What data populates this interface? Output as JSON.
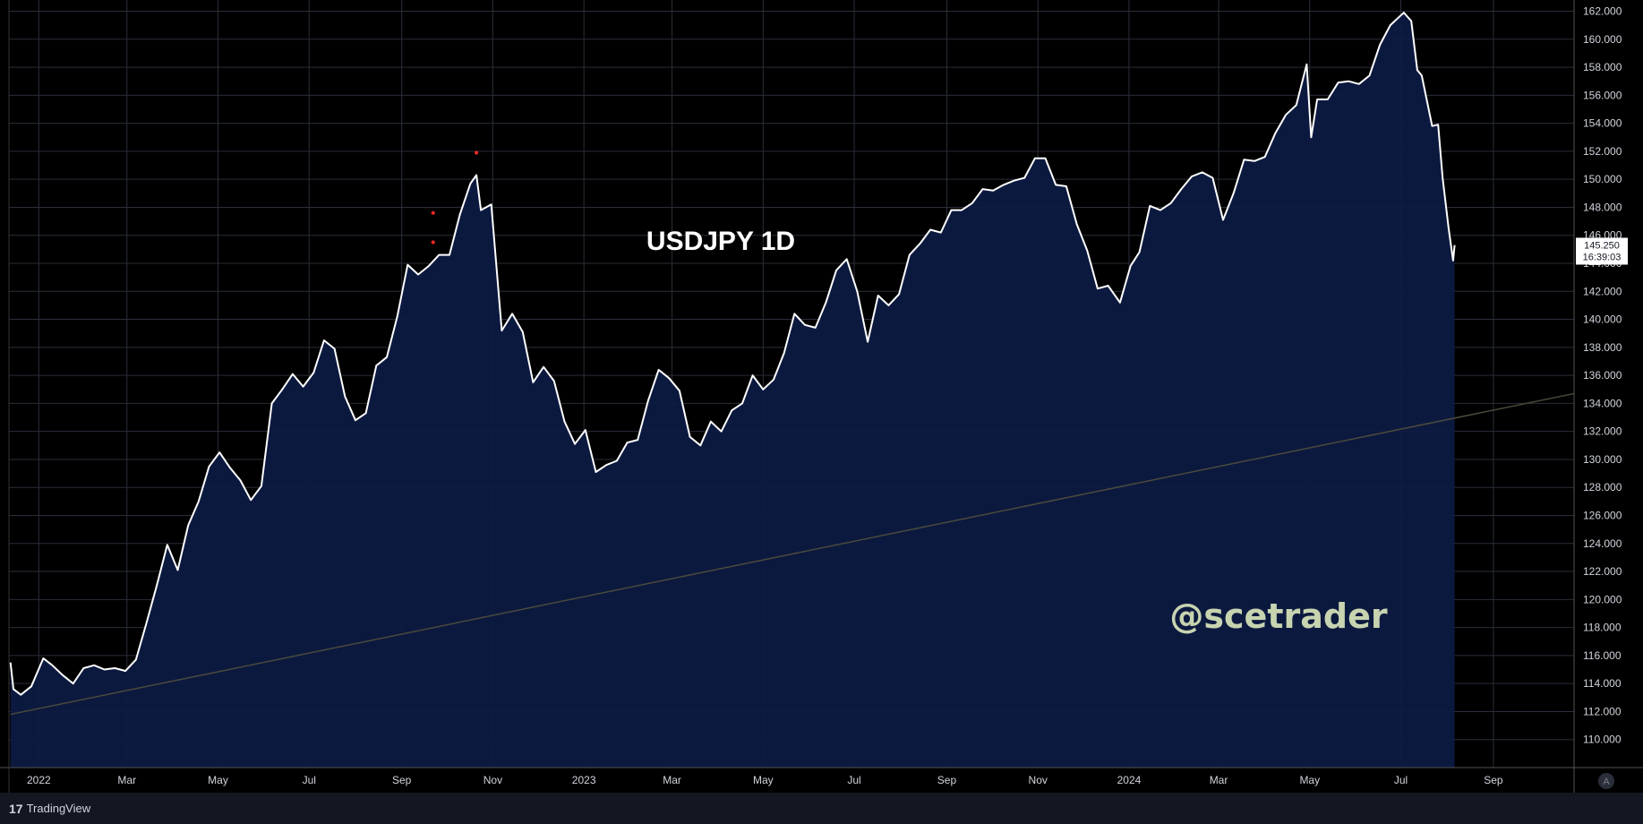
{
  "chart_data": {
    "type": "area",
    "title": "USDJPY 1D",
    "watermark": "@scetrader",
    "ylim": [
      108,
      162.8
    ],
    "y_ticks": [
      "110.000",
      "112.000",
      "114.000",
      "116.000",
      "118.000",
      "120.000",
      "122.000",
      "124.000",
      "126.000",
      "128.000",
      "130.000",
      "132.000",
      "134.000",
      "136.000",
      "138.000",
      "140.000",
      "142.000",
      "144.000",
      "146.000",
      "148.000",
      "150.000",
      "152.000",
      "154.000",
      "156.000",
      "158.000",
      "160.000",
      "162.000"
    ],
    "x_ticks": [
      {
        "label": "2022",
        "date": "2022-01-01"
      },
      {
        "label": "Mar",
        "date": "2022-03-01"
      },
      {
        "label": "May",
        "date": "2022-05-01"
      },
      {
        "label": "Jul",
        "date": "2022-07-01"
      },
      {
        "label": "Sep",
        "date": "2022-09-01"
      },
      {
        "label": "Nov",
        "date": "2022-11-01"
      },
      {
        "label": "2023",
        "date": "2023-01-01"
      },
      {
        "label": "Mar",
        "date": "2023-03-01"
      },
      {
        "label": "May",
        "date": "2023-05-01"
      },
      {
        "label": "Jul",
        "date": "2023-07-01"
      },
      {
        "label": "Sep",
        "date": "2023-09-01"
      },
      {
        "label": "Nov",
        "date": "2023-11-01"
      },
      {
        "label": "2024",
        "date": "2024-01-01"
      },
      {
        "label": "Mar",
        "date": "2024-03-01"
      },
      {
        "label": "May",
        "date": "2024-05-01"
      },
      {
        "label": "Jul",
        "date": "2024-07-01"
      },
      {
        "label": "Sep",
        "date": "2024-09-01"
      }
    ],
    "x_range": [
      "2021-12-12",
      "2024-10-25"
    ],
    "series": [
      {
        "color": "#ffffff",
        "fill": "#0d1a42",
        "points": [
          [
            "2021-12-13",
            115.5
          ],
          [
            "2021-12-15",
            113.6
          ],
          [
            "2021-12-20",
            113.2
          ],
          [
            "2021-12-27",
            113.8
          ],
          [
            "2022-01-04",
            115.8
          ],
          [
            "2022-01-10",
            115.3
          ],
          [
            "2022-01-17",
            114.6
          ],
          [
            "2022-01-24",
            114.0
          ],
          [
            "2022-01-31",
            115.1
          ],
          [
            "2022-02-07",
            115.3
          ],
          [
            "2022-02-14",
            115.0
          ],
          [
            "2022-02-21",
            115.1
          ],
          [
            "2022-02-28",
            114.9
          ],
          [
            "2022-03-07",
            115.7
          ],
          [
            "2022-03-14",
            118.3
          ],
          [
            "2022-03-21",
            121.0
          ],
          [
            "2022-03-28",
            123.9
          ],
          [
            "2022-04-04",
            122.1
          ],
          [
            "2022-04-11",
            125.3
          ],
          [
            "2022-04-18",
            127.0
          ],
          [
            "2022-04-25",
            129.5
          ],
          [
            "2022-05-02",
            130.5
          ],
          [
            "2022-05-09",
            129.4
          ],
          [
            "2022-05-16",
            128.5
          ],
          [
            "2022-05-23",
            127.1
          ],
          [
            "2022-05-30",
            128.1
          ],
          [
            "2022-06-06",
            134.0
          ],
          [
            "2022-06-13",
            135.0
          ],
          [
            "2022-06-20",
            136.1
          ],
          [
            "2022-06-27",
            135.2
          ],
          [
            "2022-07-04",
            136.2
          ],
          [
            "2022-07-11",
            138.5
          ],
          [
            "2022-07-18",
            137.9
          ],
          [
            "2022-07-25",
            134.5
          ],
          [
            "2022-08-01",
            132.8
          ],
          [
            "2022-08-08",
            133.3
          ],
          [
            "2022-08-15",
            136.7
          ],
          [
            "2022-08-22",
            137.3
          ],
          [
            "2022-08-29",
            140.2
          ],
          [
            "2022-09-05",
            143.9
          ],
          [
            "2022-09-12",
            143.2
          ],
          [
            "2022-09-19",
            143.8
          ],
          [
            "2022-09-26",
            144.6
          ],
          [
            "2022-10-03",
            144.6
          ],
          [
            "2022-10-10",
            147.5
          ],
          [
            "2022-10-17",
            149.7
          ],
          [
            "2022-10-21",
            150.3
          ],
          [
            "2022-10-24",
            147.8
          ],
          [
            "2022-10-31",
            148.2
          ],
          [
            "2022-11-07",
            139.2
          ],
          [
            "2022-11-14",
            140.4
          ],
          [
            "2022-11-21",
            139.1
          ],
          [
            "2022-11-28",
            135.5
          ],
          [
            "2022-12-05",
            136.6
          ],
          [
            "2022-12-12",
            135.6
          ],
          [
            "2022-12-19",
            132.7
          ],
          [
            "2022-12-26",
            131.1
          ],
          [
            "2023-01-02",
            132.1
          ],
          [
            "2023-01-09",
            129.1
          ],
          [
            "2023-01-16",
            129.6
          ],
          [
            "2023-01-23",
            129.9
          ],
          [
            "2023-01-30",
            131.2
          ],
          [
            "2023-02-06",
            131.4
          ],
          [
            "2023-02-13",
            134.2
          ],
          [
            "2023-02-20",
            136.4
          ],
          [
            "2023-02-27",
            135.8
          ],
          [
            "2023-03-06",
            134.9
          ],
          [
            "2023-03-13",
            131.6
          ],
          [
            "2023-03-20",
            131.0
          ],
          [
            "2023-03-27",
            132.7
          ],
          [
            "2023-04-03",
            132.0
          ],
          [
            "2023-04-10",
            133.5
          ],
          [
            "2023-04-17",
            134.0
          ],
          [
            "2023-04-24",
            136.0
          ],
          [
            "2023-05-01",
            135.0
          ],
          [
            "2023-05-08",
            135.7
          ],
          [
            "2023-05-15",
            137.6
          ],
          [
            "2023-05-22",
            140.4
          ],
          [
            "2023-05-29",
            139.6
          ],
          [
            "2023-06-05",
            139.4
          ],
          [
            "2023-06-12",
            141.2
          ],
          [
            "2023-06-19",
            143.5
          ],
          [
            "2023-06-26",
            144.3
          ],
          [
            "2023-07-03",
            142.0
          ],
          [
            "2023-07-10",
            138.4
          ],
          [
            "2023-07-17",
            141.7
          ],
          [
            "2023-07-24",
            141.0
          ],
          [
            "2023-07-31",
            141.8
          ],
          [
            "2023-08-07",
            144.6
          ],
          [
            "2023-08-14",
            145.4
          ],
          [
            "2023-08-21",
            146.4
          ],
          [
            "2023-08-28",
            146.2
          ],
          [
            "2023-09-04",
            147.8
          ],
          [
            "2023-09-11",
            147.8
          ],
          [
            "2023-09-18",
            148.3
          ],
          [
            "2023-09-25",
            149.3
          ],
          [
            "2023-10-02",
            149.2
          ],
          [
            "2023-10-09",
            149.6
          ],
          [
            "2023-10-16",
            149.9
          ],
          [
            "2023-10-23",
            150.1
          ],
          [
            "2023-10-30",
            151.5
          ],
          [
            "2023-11-06",
            151.5
          ],
          [
            "2023-11-13",
            149.6
          ],
          [
            "2023-11-20",
            149.5
          ],
          [
            "2023-11-27",
            146.8
          ],
          [
            "2023-12-04",
            144.9
          ],
          [
            "2023-12-11",
            142.2
          ],
          [
            "2023-12-18",
            142.4
          ],
          [
            "2023-12-26",
            141.2
          ],
          [
            "2024-01-02",
            143.8
          ],
          [
            "2024-01-08",
            144.8
          ],
          [
            "2024-01-15",
            148.1
          ],
          [
            "2024-01-22",
            147.8
          ],
          [
            "2024-01-29",
            148.3
          ],
          [
            "2024-02-05",
            149.3
          ],
          [
            "2024-02-12",
            150.2
          ],
          [
            "2024-02-19",
            150.5
          ],
          [
            "2024-02-26",
            150.1
          ],
          [
            "2024-03-04",
            147.1
          ],
          [
            "2024-03-11",
            149.0
          ],
          [
            "2024-03-18",
            151.4
          ],
          [
            "2024-03-25",
            151.3
          ],
          [
            "2024-04-01",
            151.6
          ],
          [
            "2024-04-08",
            153.3
          ],
          [
            "2024-04-15",
            154.6
          ],
          [
            "2024-04-22",
            155.3
          ],
          [
            "2024-04-29",
            158.2
          ],
          [
            "2024-05-02",
            153.0
          ],
          [
            "2024-05-06",
            155.7
          ],
          [
            "2024-05-13",
            155.7
          ],
          [
            "2024-05-20",
            156.9
          ],
          [
            "2024-05-27",
            157.0
          ],
          [
            "2024-06-03",
            156.8
          ],
          [
            "2024-06-10",
            157.4
          ],
          [
            "2024-06-17",
            159.6
          ],
          [
            "2024-06-24",
            161.0
          ],
          [
            "2024-07-01",
            161.7
          ],
          [
            "2024-07-03",
            161.9
          ],
          [
            "2024-07-08",
            161.3
          ],
          [
            "2024-07-12",
            157.8
          ],
          [
            "2024-07-15",
            157.4
          ],
          [
            "2024-07-22",
            153.8
          ],
          [
            "2024-07-26",
            153.9
          ],
          [
            "2024-07-29",
            150.1
          ],
          [
            "2024-08-02",
            146.5
          ],
          [
            "2024-08-05",
            144.2
          ],
          [
            "2024-08-06",
            145.3
          ]
        ]
      }
    ],
    "markers": [
      {
        "date": "2022-09-22",
        "value": 145.5,
        "color": "#ff2a2a"
      },
      {
        "date": "2022-09-22",
        "value": 147.6,
        "color": "#ff2a2a"
      },
      {
        "date": "2022-10-21",
        "value": 151.9,
        "color": "#ff2a2a"
      }
    ],
    "trendline": {
      "from": {
        "date": "2021-12-13",
        "value": 111.8
      },
      "to": {
        "date": "2024-10-25",
        "value": 134.7
      },
      "color": "#4a4a3c"
    },
    "price_label": {
      "value": "145.250",
      "countdown": "16:39:03",
      "level": 145.25
    },
    "grid": true,
    "background": "#000000",
    "grid_color": "#2a2e39"
  },
  "footer": {
    "brand_mark": "17",
    "brand_name": "TradingView"
  },
  "axis_corner": {
    "label": "A"
  }
}
